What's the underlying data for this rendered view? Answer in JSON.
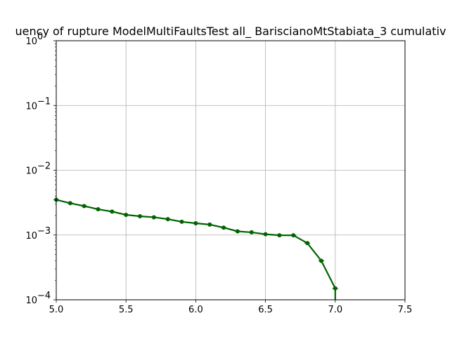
{
  "chart_data": {
    "type": "line",
    "title": "uency of rupture ModelMultiFaultsTest all_ BariscianoMtStabiata_3 cumulativ",
    "xlabel": "",
    "ylabel": "",
    "xlim": [
      5.0,
      7.5
    ],
    "ylim": [
      0.0001,
      1.0
    ],
    "yscale": "log",
    "grid": true,
    "x_ticks": [
      {
        "value": 5.0,
        "label": "5.0"
      },
      {
        "value": 5.5,
        "label": "5.5"
      },
      {
        "value": 6.0,
        "label": "6.0"
      },
      {
        "value": 6.5,
        "label": "6.5"
      },
      {
        "value": 7.0,
        "label": "7.0"
      },
      {
        "value": 7.5,
        "label": "7.5"
      }
    ],
    "y_ticks": [
      {
        "value": 0.0001,
        "base": "10",
        "exp": "−4"
      },
      {
        "value": 0.001,
        "base": "10",
        "exp": "−3"
      },
      {
        "value": 0.01,
        "base": "10",
        "exp": "−2"
      },
      {
        "value": 0.1,
        "base": "10",
        "exp": "−1"
      },
      {
        "value": 1.0,
        "base": "10",
        "exp": "0"
      }
    ],
    "series": [
      {
        "color": "#006400",
        "x": [
          5.0,
          5.1,
          5.2,
          5.3,
          5.4,
          5.5,
          5.6,
          5.7,
          5.8,
          5.9,
          6.0,
          6.1,
          6.2,
          6.3,
          6.4,
          6.5,
          6.6,
          6.7,
          6.8,
          6.9,
          7.0,
          7.0
        ],
        "y": [
          0.0035,
          0.0031,
          0.0028,
          0.0025,
          0.0023,
          0.00205,
          0.00195,
          0.00188,
          0.00176,
          0.0016,
          0.00152,
          0.00145,
          0.0013,
          0.00114,
          0.0011,
          0.00103,
          0.00099,
          0.00099,
          0.00075,
          0.0004,
          0.00015,
          0.0001
        ]
      }
    ]
  }
}
